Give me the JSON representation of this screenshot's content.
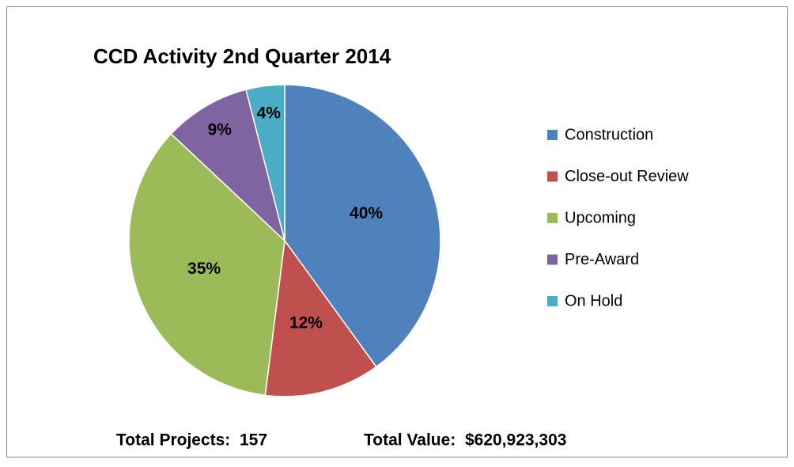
{
  "chart_data": {
    "type": "pie",
    "title": "CCD Activity 2nd Quarter 2014",
    "categories": [
      "Construction",
      "Close-out Review",
      "Upcoming",
      "Pre-Award",
      "On Hold"
    ],
    "values": [
      40,
      12,
      35,
      9,
      4
    ],
    "value_labels": [
      "40%",
      "12%",
      "35%",
      "9%",
      "4%"
    ],
    "colors": [
      "#4f81bd",
      "#c0504d",
      "#9bbb59",
      "#8064a2",
      "#4bacc6"
    ],
    "legend": "right",
    "annotations": [
      "Total Projects:  157",
      "Total Value:  $620,923,303"
    ]
  }
}
